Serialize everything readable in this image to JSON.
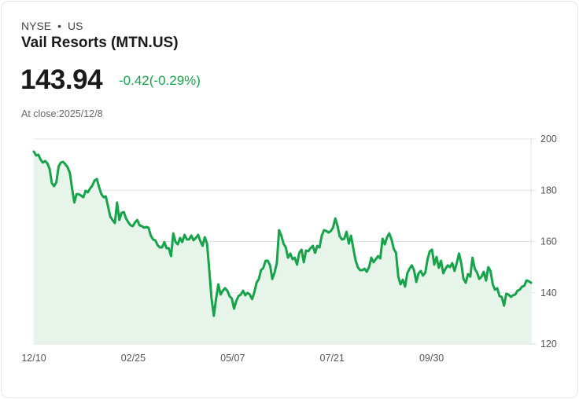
{
  "header": {
    "exchange": "NYSE",
    "separator": "•",
    "region": "US",
    "title": "Vail Resorts (MTN.US)",
    "price": "143.94",
    "change": "-0.42(-0.29%)",
    "close_label": "At close:2025/12/8"
  },
  "colors": {
    "line": "#16a34a",
    "fill": "#e6f4ea",
    "positive": "#16a34a",
    "grid": "#e2e2e2"
  },
  "chart_data": {
    "type": "area",
    "title": "Vail Resorts (MTN.US)",
    "xlabel": "",
    "ylabel": "",
    "ylim": [
      120,
      200
    ],
    "y_ticks": [
      "200",
      "180",
      "160",
      "140",
      "120"
    ],
    "y_tick_values": [
      200,
      180,
      160,
      140,
      120
    ],
    "x_ticks": [
      "12/10",
      "02/25",
      "05/07",
      "07/21",
      "09/30"
    ],
    "grid": true,
    "y_axis_side": "right",
    "values": [
      195.1,
      193.6,
      193.9,
      192.0,
      190.8,
      191.4,
      190.5,
      188.4,
      182.8,
      181.6,
      183.1,
      189.3,
      190.8,
      191.1,
      190.2,
      189.0,
      186.8,
      180.7,
      175.2,
      178.5,
      178.5,
      177.9,
      177.3,
      179.8,
      179.2,
      180.7,
      181.9,
      183.8,
      184.4,
      181.3,
      178.5,
      177.3,
      177.6,
      173.6,
      169.7,
      168.4,
      167.2,
      175.2,
      168.4,
      171.2,
      171.5,
      169.0,
      167.5,
      166.3,
      166.0,
      167.5,
      168.4,
      166.3,
      166.0,
      165.4,
      165.7,
      165.4,
      162.3,
      160.8,
      160.5,
      158.6,
      157.7,
      157.7,
      159.8,
      157.4,
      157.4,
      154.3,
      163.2,
      159.8,
      158.9,
      161.4,
      159.8,
      162.6,
      160.8,
      160.8,
      162.3,
      160.5,
      161.4,
      162.6,
      160.2,
      158.3,
      161.7,
      159.2,
      148.5,
      137.8,
      131.0,
      137.5,
      143.3,
      139.3,
      140.8,
      141.8,
      140.8,
      138.7,
      137.8,
      133.8,
      136.9,
      138.7,
      139.3,
      140.8,
      139.0,
      140.0,
      139.3,
      137.5,
      140.2,
      143.9,
      145.4,
      148.8,
      149.7,
      152.5,
      152.5,
      150.7,
      145.4,
      147.9,
      151.6,
      164.4,
      162.3,
      159.2,
      157.7,
      153.7,
      155.3,
      153.1,
      153.7,
      151.0,
      155.6,
      156.8,
      151.9,
      156.5,
      156.2,
      157.4,
      158.3,
      155.6,
      158.3,
      157.7,
      162.3,
      164.4,
      164.1,
      163.5,
      164.1,
      165.4,
      169.0,
      166.0,
      162.0,
      160.8,
      161.1,
      163.8,
      159.2,
      162.3,
      157.4,
      152.8,
      150.0,
      148.8,
      148.8,
      149.4,
      148.2,
      150.0,
      153.7,
      151.9,
      153.1,
      154.3,
      153.4,
      161.1,
      158.9,
      161.7,
      163.2,
      160.8,
      157.1,
      155.6,
      146.3,
      143.3,
      145.1,
      142.4,
      147.6,
      149.4,
      150.7,
      148.8,
      144.2,
      147.6,
      148.5,
      146.7,
      147.9,
      153.1,
      156.2,
      156.8,
      151.0,
      154.0,
      149.7,
      152.5,
      147.6,
      149.4,
      150.7,
      150.0,
      151.6,
      148.5,
      151.6,
      155.3,
      151.6,
      145.4,
      143.9,
      147.3,
      146.3,
      153.7,
      149.4,
      147.9,
      145.4,
      146.3,
      148.2,
      144.8,
      150.0,
      148.5,
      143.3,
      141.2,
      141.8,
      138.7,
      138.4,
      135.0,
      139.6,
      139.3,
      138.4,
      139.0,
      139.3,
      140.8,
      141.2,
      142.4,
      142.7,
      144.8,
      144.5,
      143.94
    ]
  }
}
